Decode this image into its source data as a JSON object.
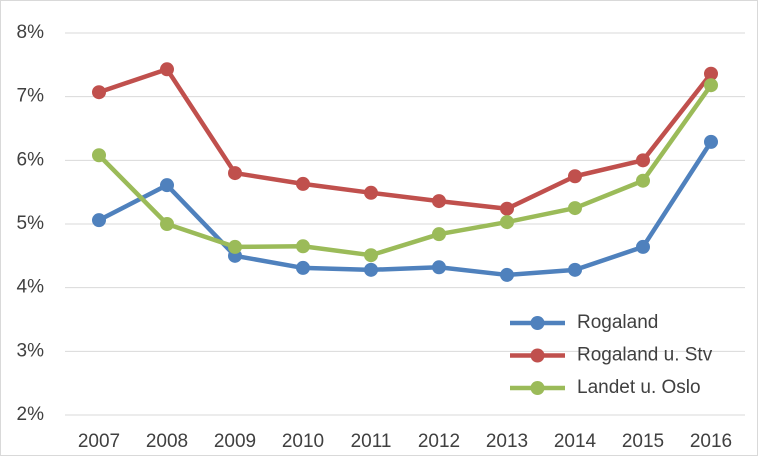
{
  "chart_data": {
    "type": "line",
    "categories": [
      "2007",
      "2008",
      "2009",
      "2010",
      "2011",
      "2012",
      "2013",
      "2014",
      "2015",
      "2016"
    ],
    "series": [
      {
        "name": "Rogaland",
        "color": "#4f81bd",
        "values": [
          5.06,
          5.61,
          4.5,
          4.31,
          4.28,
          4.32,
          4.2,
          4.28,
          4.64,
          6.29
        ]
      },
      {
        "name": "Rogaland u. Stv",
        "color": "#c0504d",
        "values": [
          7.07,
          7.43,
          5.8,
          5.63,
          5.49,
          5.36,
          5.24,
          5.75,
          6.0,
          7.36
        ]
      },
      {
        "name": "Landet u. Oslo",
        "color": "#9bbb59",
        "values": [
          6.08,
          5.0,
          4.64,
          4.65,
          4.51,
          4.84,
          5.03,
          5.25,
          5.68,
          7.18
        ]
      }
    ],
    "ylim": [
      2,
      8
    ],
    "yticks": [
      {
        "value": 2,
        "label": "2%"
      },
      {
        "value": 3,
        "label": "3%"
      },
      {
        "value": 4,
        "label": "4%"
      },
      {
        "value": 5,
        "label": "5%"
      },
      {
        "value": 6,
        "label": "6%"
      },
      {
        "value": 7,
        "label": "7%"
      },
      {
        "value": 8,
        "label": "8%"
      }
    ],
    "grid": true,
    "legend": "lower right"
  }
}
